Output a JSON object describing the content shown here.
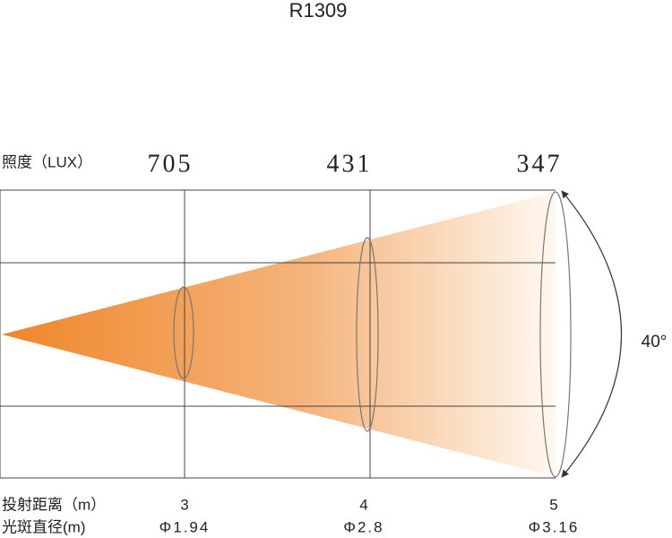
{
  "title": "R1309",
  "illuminance_label": "照度（LUX）",
  "distance_label": "投射距离（m）",
  "diameter_label": "光斑直径(m)",
  "beam_angle": "40°",
  "points": [
    {
      "lux": "705",
      "distance": "3",
      "diameter": "Φ1.94"
    },
    {
      "lux": "431",
      "distance": "4",
      "diameter": "Φ2.8"
    },
    {
      "lux": "347",
      "distance": "5",
      "diameter": "Φ3.16"
    }
  ]
}
